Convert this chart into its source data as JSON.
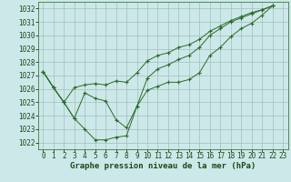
{
  "title": "Graphe pression niveau de la mer (hPa)",
  "background_color": "#cde8e8",
  "grid_color": "#9fbfbf",
  "line_color": "#2a6b2a",
  "spine_color": "#3a7a3a",
  "text_color": "#1a4a1a",
  "ylim": [
    1021.5,
    1032.5
  ],
  "xlim": [
    -0.5,
    23.5
  ],
  "yticks": [
    1022,
    1023,
    1024,
    1025,
    1026,
    1027,
    1028,
    1029,
    1030,
    1031,
    1032
  ],
  "xticks": [
    0,
    1,
    2,
    3,
    4,
    5,
    6,
    7,
    8,
    9,
    10,
    11,
    12,
    13,
    14,
    15,
    16,
    17,
    18,
    19,
    20,
    21,
    22,
    23
  ],
  "series": [
    [
      1027.3,
      1026.1,
      1025.0,
      1023.8,
      1023.0,
      1022.2,
      1022.2,
      1022.4,
      1022.5,
      1024.7,
      1025.9,
      1026.2,
      1026.5,
      1026.5,
      1026.7,
      1027.2,
      1028.5,
      1029.1,
      1029.9,
      1030.5,
      1030.9,
      1031.5,
      1032.2
    ],
    [
      1027.3,
      1026.1,
      1025.0,
      1023.8,
      1025.7,
      1025.3,
      1025.1,
      1023.7,
      1023.1,
      1024.7,
      1026.8,
      1027.5,
      1027.8,
      1028.2,
      1028.5,
      1029.1,
      1030.0,
      1030.5,
      1031.0,
      1031.3,
      1031.6,
      1031.9,
      1032.2
    ],
    [
      1027.3,
      1026.1,
      1025.0,
      1026.1,
      1026.3,
      1026.4,
      1026.3,
      1026.6,
      1026.5,
      1027.2,
      1028.1,
      1028.5,
      1028.7,
      1029.1,
      1029.3,
      1029.7,
      1030.3,
      1030.7,
      1031.1,
      1031.4,
      1031.7,
      1031.9,
      1032.2
    ]
  ],
  "title_fontsize": 6.5,
  "tick_fontsize": 5.5
}
